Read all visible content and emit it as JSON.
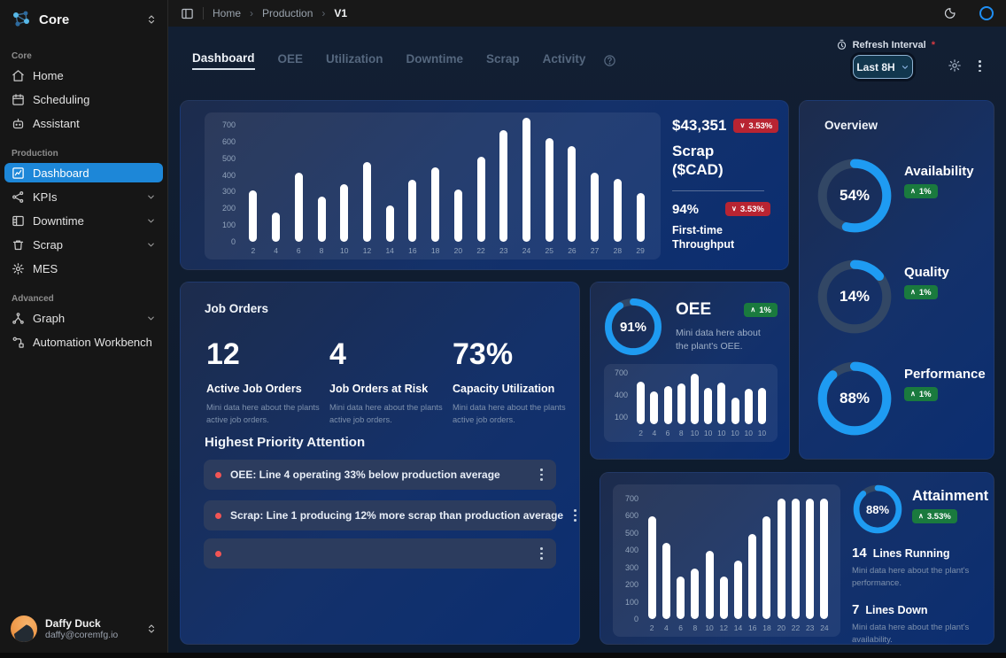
{
  "colors": {
    "accent": "#1e9bf2",
    "ring_track": "#324765",
    "badge_green": "#1a7a3e",
    "badge_red": "#b82432",
    "sidebar_active": "#1d87d8",
    "bar": "#ffffff"
  },
  "icons": [
    "app-logo-icon",
    "chevron-up-down-icon",
    "home-icon",
    "calendar-icon",
    "assistant-icon",
    "dashboard-icon",
    "kpis-icon",
    "downtime-icon",
    "scrap-icon",
    "mes-icon",
    "graph-icon",
    "workbench-icon",
    "chevron-down-icon",
    "panel-toggle-icon",
    "moon-icon",
    "loading-spinner-icon",
    "help-circle-icon",
    "timer-icon",
    "gear-icon",
    "kebab-menu-icon",
    "trend-up-icon",
    "trend-down-icon"
  ],
  "sidebar": {
    "app_name": "Core",
    "sections": [
      {
        "label": "Core",
        "items": [
          {
            "label": "Home"
          },
          {
            "label": "Scheduling"
          },
          {
            "label": "Assistant"
          }
        ]
      },
      {
        "label": "Production",
        "items": [
          {
            "label": "Dashboard",
            "active": true
          },
          {
            "label": "KPIs",
            "expandable": true
          },
          {
            "label": "Downtime",
            "expandable": true
          },
          {
            "label": "Scrap",
            "expandable": true
          },
          {
            "label": "MES"
          }
        ]
      },
      {
        "label": "Advanced",
        "items": [
          {
            "label": "Graph",
            "expandable": true
          },
          {
            "label": "Automation Workbench"
          }
        ]
      }
    ],
    "user": {
      "name": "Daffy Duck",
      "email": "daffy@coremfg.io"
    }
  },
  "header": {
    "breadcrumb": [
      "Home",
      "Production",
      "V1"
    ]
  },
  "toolbar": {
    "tabs": [
      {
        "label": "Dashboard",
        "active": true
      },
      {
        "label": "OEE"
      },
      {
        "label": "Utilization"
      },
      {
        "label": "Downtime"
      },
      {
        "label": "Scrap"
      },
      {
        "label": "Activity"
      }
    ],
    "refresh_interval_label": "Refresh Interval",
    "required_marker": "*",
    "interval_value": "Last 8H"
  },
  "cards": {
    "scrap": {
      "stat1": {
        "value": "$43,351",
        "badge": {
          "trend": "down",
          "value": "3.53%"
        },
        "title": "Scrap ($CAD)"
      },
      "stat2": {
        "value": "94%",
        "badge": {
          "trend": "down",
          "value": "3.53%"
        },
        "title": "First-time Throughput"
      }
    },
    "overview": {
      "title": "Overview",
      "metrics": [
        {
          "percent": 54,
          "display": "54%",
          "label": "Availability",
          "badge": {
            "trend": "up",
            "value": "1%"
          }
        },
        {
          "percent": 14,
          "display": "14%",
          "label": "Quality",
          "badge": {
            "trend": "up",
            "value": "1%"
          }
        },
        {
          "percent": 88,
          "display": "88%",
          "label": "Performance",
          "badge": {
            "trend": "up",
            "value": "1%"
          }
        }
      ]
    },
    "job_orders": {
      "title": "Job Orders",
      "stats": [
        {
          "value": "12",
          "label": "Active Job Orders",
          "desc": "Mini data here about the plants active job orders."
        },
        {
          "value": "4",
          "label": "Job Orders at Risk",
          "desc": "Mini data here about the plants active job orders."
        },
        {
          "value": "73%",
          "label": "Capacity Utilization",
          "desc": "Mini data here about the plants active job orders."
        }
      ],
      "attention_title": "Highest Priority Attention",
      "alerts": [
        {
          "text": "OEE: Line 4 operating 33% below production average"
        },
        {
          "text": "Scrap: Line 1 producing 12% more scrap than production average"
        },
        {
          "text": ""
        }
      ]
    },
    "oee": {
      "percent": 91,
      "display": "91%",
      "title": "OEE",
      "badge": {
        "trend": "up",
        "value": "1%"
      },
      "desc": "Mini data here about the plant's OEE."
    },
    "attainment": {
      "percent": 88,
      "display": "88%",
      "title": "Attainment",
      "badge": {
        "trend": "up",
        "value": "3.53%"
      },
      "lines": [
        {
          "value": "14",
          "label": "Lines Running",
          "desc": "Mini data here about the plant's performance."
        },
        {
          "value": "7",
          "label": "Lines Down",
          "desc": "Mini data here about the plant's availability."
        }
      ]
    }
  },
  "chart_data": [
    {
      "id": "scrap_chart",
      "type": "bar",
      "categories": [
        "2",
        "4",
        "6",
        "8",
        "10",
        "12",
        "14",
        "16",
        "18",
        "20",
        "22",
        "23",
        "24",
        "25",
        "26",
        "27",
        "28",
        "29"
      ],
      "values": [
        310,
        175,
        415,
        270,
        345,
        475,
        215,
        370,
        445,
        315,
        510,
        670,
        745,
        620,
        575,
        415,
        375,
        290
      ],
      "yticks": [
        0,
        100,
        200,
        300,
        400,
        500,
        600,
        700
      ],
      "ylim": [
        0,
        700
      ],
      "bar_color": "#ffffff",
      "grid": false,
      "title": "",
      "xlabel": "",
      "ylabel": ""
    },
    {
      "id": "oee_chart",
      "type": "bar",
      "categories": [
        "2",
        "4",
        "6",
        "8",
        "10",
        "10",
        "10",
        "10",
        "10",
        "10"
      ],
      "values": [
        580,
        450,
        520,
        560,
        690,
        490,
        570,
        360,
        480,
        500
      ],
      "yticks": [
        100,
        400,
        700
      ],
      "ylim": [
        0,
        700
      ],
      "bar_color": "#ffffff",
      "grid": false,
      "title": "",
      "xlabel": "",
      "ylabel": ""
    },
    {
      "id": "attainment_chart",
      "type": "bar",
      "categories": [
        "2",
        "4",
        "6",
        "8",
        "10",
        "12",
        "14",
        "16",
        "18",
        "20",
        "22",
        "23",
        "24"
      ],
      "values": [
        595,
        445,
        245,
        295,
        395,
        245,
        340,
        495,
        595,
        700,
        700,
        700,
        700
      ],
      "yticks": [
        0,
        100,
        200,
        300,
        400,
        500,
        600,
        700
      ],
      "ylim": [
        0,
        700
      ],
      "bar_color": "#ffffff",
      "grid": false,
      "title": "",
      "xlabel": "",
      "ylabel": ""
    }
  ]
}
